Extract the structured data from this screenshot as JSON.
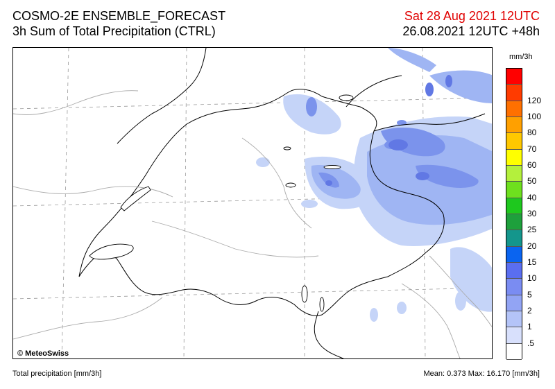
{
  "header": {
    "model": "COSMO-2E ENSEMBLE_FORECAST",
    "product": "3h Sum of Total Precipitation (CTRL)",
    "valid_time": "Sat 28 Aug 2021 12UTC",
    "run_time": "26.08.2021 12UTC +48h"
  },
  "map": {
    "copyright": "© MeteoSwiss",
    "precip_colors": {
      "lightest": "#d6e2fb",
      "light": "#b3c8f6",
      "medium": "#8ea8f0",
      "strong": "#6b84e6"
    }
  },
  "legend": {
    "unit": "mm/3h",
    "levels": [
      {
        "label": "",
        "color": "#ff0000"
      },
      {
        "label": "120",
        "color": "#ff3b00"
      },
      {
        "label": "100",
        "color": "#ff7000"
      },
      {
        "label": "80",
        "color": "#ffa000"
      },
      {
        "label": "70",
        "color": "#ffc800"
      },
      {
        "label": "60",
        "color": "#ffff00"
      },
      {
        "label": "50",
        "color": "#b4f03c"
      },
      {
        "label": "40",
        "color": "#6ee01e"
      },
      {
        "label": "30",
        "color": "#1ec81e"
      },
      {
        "label": "25",
        "color": "#1ea03c"
      },
      {
        "label": "20",
        "color": "#14968c"
      },
      {
        "label": "15",
        "color": "#0a64f0"
      },
      {
        "label": "10",
        "color": "#5a6ef0"
      },
      {
        "label": "5",
        "color": "#7a8cf2"
      },
      {
        "label": "2",
        "color": "#92a4f4"
      },
      {
        "label": "1",
        "color": "#b4c4f8"
      },
      {
        "label": ".5",
        "color": "#d8e0fc"
      },
      {
        "label": "",
        "color": "#ffffff"
      }
    ]
  },
  "footer": {
    "left": "Total precipitation [mm/3h]",
    "right": "Mean:   0.373 Max:  16.170 [mm/3h]"
  }
}
